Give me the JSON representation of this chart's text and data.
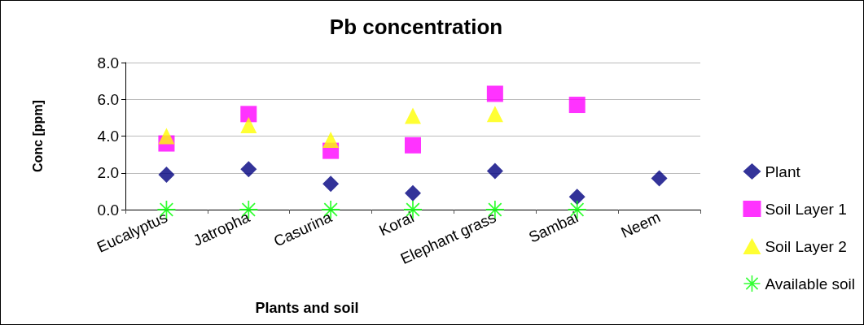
{
  "chart_data": {
    "type": "scatter",
    "title": "Pb concentration",
    "xlabel": "Plants and soil",
    "ylabel": "Conc [ppm]",
    "categories": [
      "Eucalyptus",
      "Jatropha",
      "Casurina",
      "Korai",
      "Elephant grass",
      "Sambai",
      "Neem"
    ],
    "series": [
      {
        "name": "Plant",
        "color": "#000080",
        "marker": "diamond",
        "values": [
          1.9,
          2.2,
          1.4,
          0.9,
          2.1,
          0.7,
          1.7
        ]
      },
      {
        "name": "Soil Layer 1",
        "color": "#ff00ff",
        "marker": "square",
        "values": [
          3.6,
          5.2,
          3.2,
          3.5,
          6.3,
          5.7,
          null
        ]
      },
      {
        "name": "Soil Layer 2",
        "color": "#ffff00",
        "marker": "triangle",
        "values": [
          4.0,
          4.6,
          3.8,
          5.1,
          5.2,
          null,
          null
        ]
      },
      {
        "name": "Available soil",
        "color": "#00ff00",
        "marker": "cross",
        "values": [
          0,
          0,
          0,
          0,
          0,
          0,
          null
        ]
      }
    ],
    "ylim": [
      0,
      8
    ],
    "yticks": [
      {
        "value": 0,
        "label": "0.0"
      },
      {
        "value": 2,
        "label": "2.0"
      },
      {
        "value": 4,
        "label": "4.0"
      },
      {
        "value": 6,
        "label": "6.0"
      },
      {
        "value": 8,
        "label": "8.0"
      }
    ],
    "grid": "y",
    "legend": "right"
  }
}
